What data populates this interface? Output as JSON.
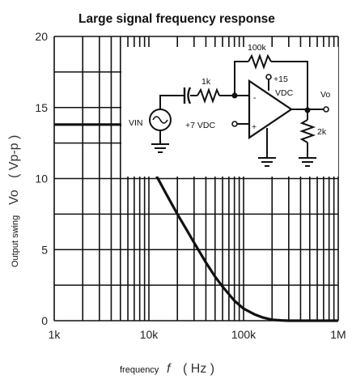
{
  "chart_data": {
    "type": "line",
    "title": "Large signal frequency response",
    "xlabel": "frequency",
    "xlabel_symbol": "f",
    "xlabel_unit": "( Hz )",
    "ylabel": "Output swing",
    "ylabel_symbol": "Vo",
    "ylabel_unit": "( Vp-p )",
    "x_scale": "log",
    "xlim": [
      1000,
      1000000
    ],
    "ylim": [
      0,
      20
    ],
    "x_ticks": [
      {
        "value": 1000,
        "label": "1k"
      },
      {
        "value": 10000,
        "label": "10k"
      },
      {
        "value": 100000,
        "label": "100k"
      },
      {
        "value": 1000000,
        "label": "1M"
      }
    ],
    "y_ticks": [
      {
        "value": 0,
        "label": "0"
      },
      {
        "value": 5,
        "label": "5"
      },
      {
        "value": 10,
        "label": "10"
      },
      {
        "value": 15,
        "label": "15"
      },
      {
        "value": 20,
        "label": "20"
      }
    ],
    "grid": true,
    "series": [
      {
        "x": [
          1000,
          2000,
          3000,
          4000,
          5000,
          5500,
          6000,
          7000,
          8000,
          9000,
          10000,
          12000,
          15000,
          20000,
          25000,
          30000,
          40000,
          50000,
          60000,
          80000,
          100000,
          130000,
          160000,
          200000,
          250000,
          300000,
          350000,
          400000,
          500000,
          700000,
          1000000
        ],
        "y": [
          13.8,
          13.8,
          13.8,
          13.8,
          13.8,
          13.7,
          13.5,
          13.0,
          12.4,
          11.8,
          11.2,
          10.2,
          9.0,
          7.5,
          6.4,
          5.5,
          4.1,
          3.1,
          2.4,
          1.4,
          0.85,
          0.45,
          0.22,
          0.07,
          0.02,
          0.0,
          0.0,
          0.0,
          0.0,
          0.0,
          0.0
        ]
      }
    ],
    "inset_circuit": {
      "labels": {
        "feedback_resistor": "100k",
        "input_resistor": "1k",
        "supply": "+15",
        "supply_unit": "VDC",
        "bias": "+7 VDC",
        "input": "VIN",
        "output": "Vo",
        "load": "2k",
        "inverting": "-",
        "noninverting": "+"
      }
    }
  }
}
